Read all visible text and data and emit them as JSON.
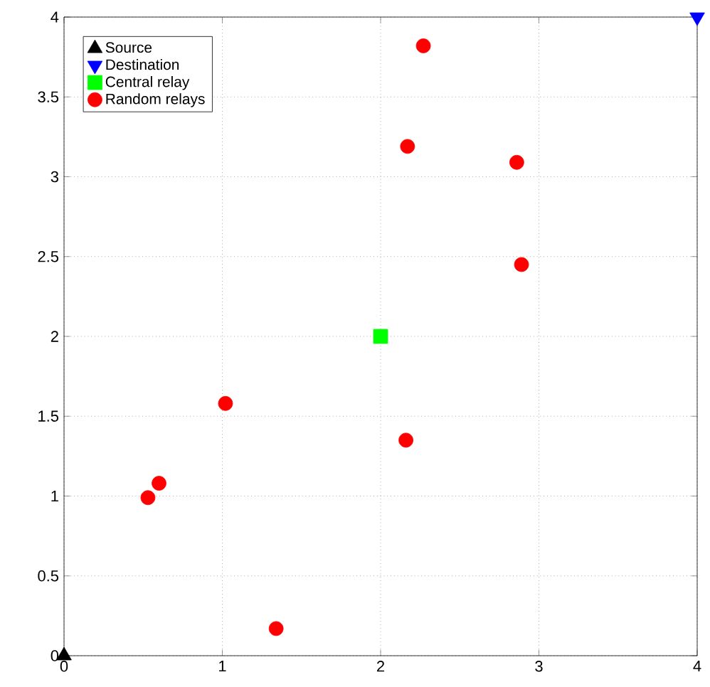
{
  "chart_data": {
    "type": "scatter",
    "xlim": [
      0,
      4
    ],
    "ylim": [
      0,
      4
    ],
    "xticks": [
      0,
      1,
      2,
      3,
      4
    ],
    "yticks": [
      0,
      0.5,
      1,
      1.5,
      2,
      2.5,
      3,
      3.5,
      4
    ],
    "grid": true,
    "legend": "top left",
    "series": [
      {
        "name": "Source",
        "color": "#000000",
        "marker": "triangle",
        "x": [
          0
        ],
        "values": [
          0
        ]
      },
      {
        "name": "Destination",
        "color": "#0000ff",
        "marker": "triangle-down",
        "x": [
          4
        ],
        "values": [
          4
        ]
      },
      {
        "name": "Central relay",
        "color": "#00ff00",
        "marker": "square",
        "x": [
          2
        ],
        "values": [
          2
        ]
      },
      {
        "name": "Random relays",
        "color": "#ff0000",
        "marker": "circle",
        "x": [
          2.27,
          2.17,
          2.86,
          2.89,
          1.02,
          2.16,
          0.6,
          0.53,
          1.34
        ],
        "values": [
          3.82,
          3.19,
          3.09,
          2.45,
          1.58,
          1.35,
          1.08,
          0.99,
          0.17
        ]
      }
    ]
  }
}
